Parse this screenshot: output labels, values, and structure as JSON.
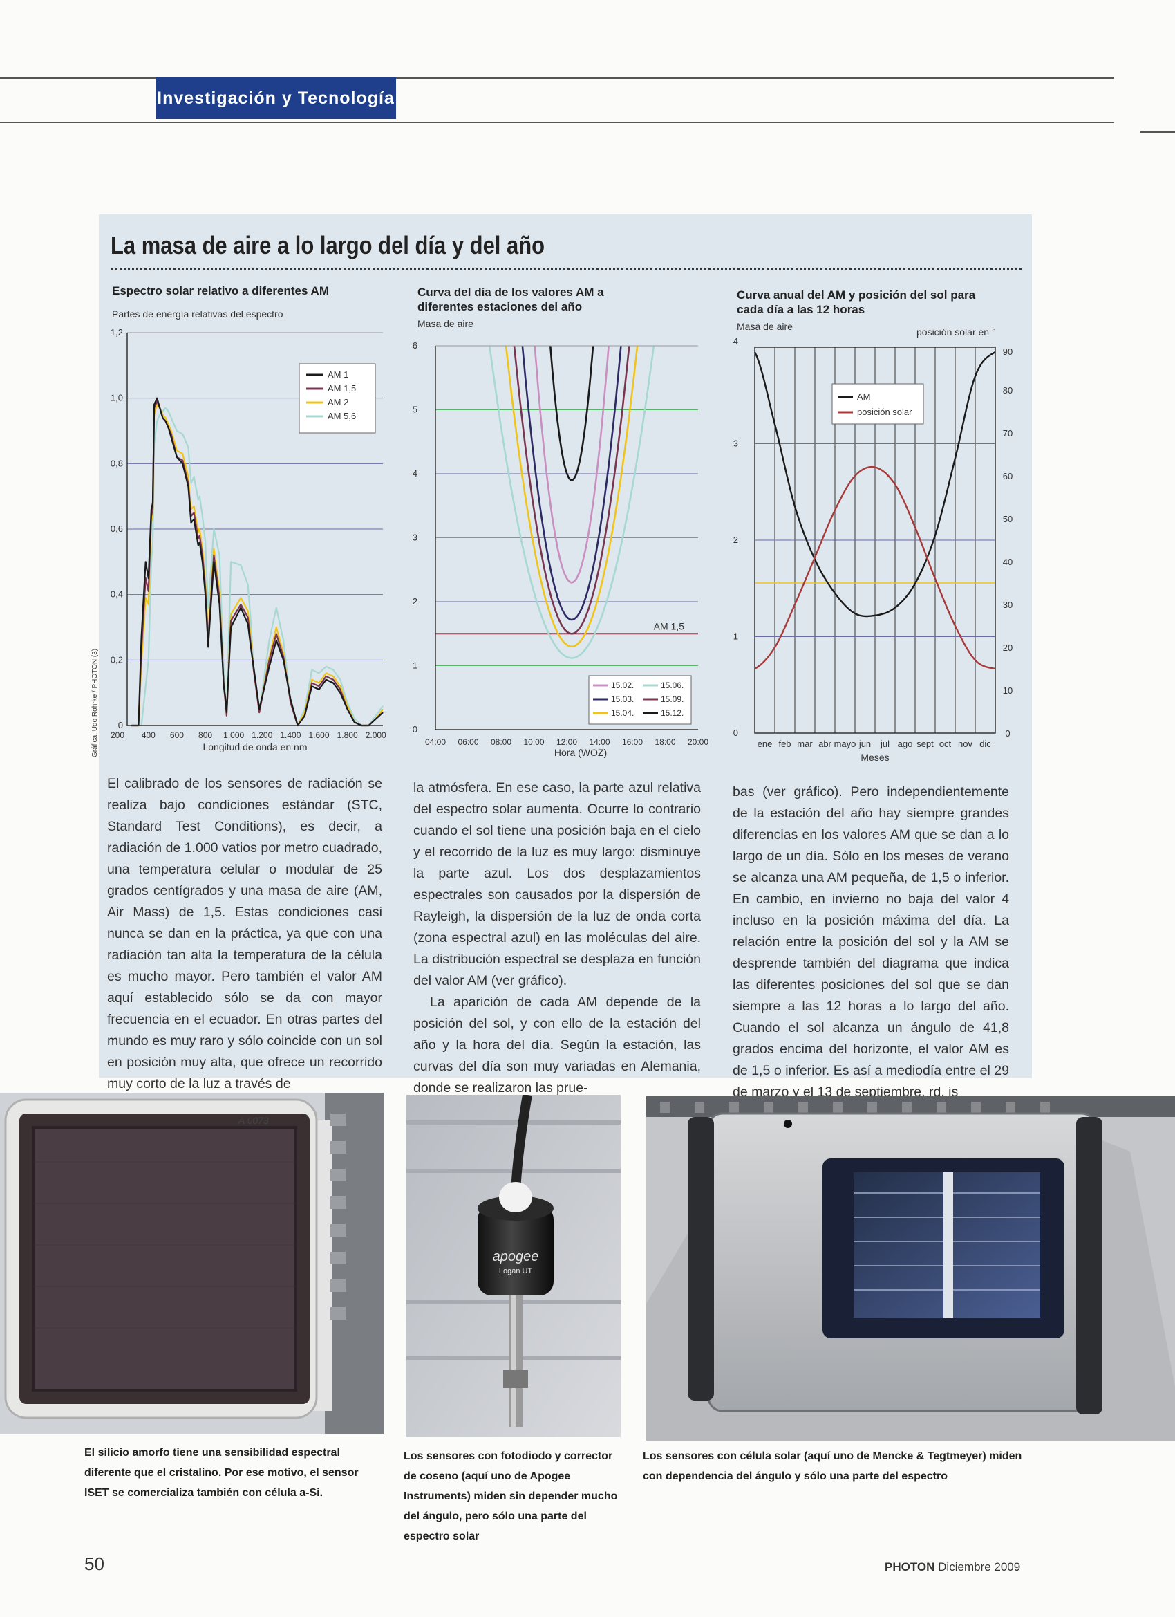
{
  "header": {
    "section": "Investigación y Tecnología"
  },
  "box": {
    "title": "La masa de aire a lo largo del día y del año"
  },
  "chart1": {
    "title": "Espectro solar relativo a diferentes AM",
    "subtitle": "Partes de energía relativas del espectro",
    "credit": "Gráfica: Udo Rohrke / PHOTON (3)"
  },
  "chart2": {
    "title": "Curva del día de los valores AM a diferentes estaciones del año",
    "subtitle": "Masa de aire",
    "annotation": "AM 1,5"
  },
  "chart3": {
    "title": "Curva anual del AM y posición del sol para cada día a las 12 horas",
    "subtitle": "Masa de aire",
    "right_axis_title": "posición solar en °"
  },
  "chart_data": [
    {
      "type": "line",
      "title": "Espectro solar relativo a diferentes AM",
      "ylabel": "Partes de energía relativas del espectro",
      "xlabel": "Longitud de onda en nm",
      "x_ticks": [
        "200",
        "400",
        "600",
        "800",
        "1.000",
        "1.200",
        "1.400",
        "1.600",
        "1.800",
        "2.000"
      ],
      "y_ticks": [
        "0",
        "0,2",
        "0,4",
        "0,6",
        "0,8",
        "1,0",
        "1,2"
      ],
      "xlim": [
        250,
        2050
      ],
      "ylim": [
        0,
        1.2
      ],
      "grid": true,
      "legend": "top-right",
      "x": [
        280,
        330,
        350,
        380,
        400,
        420,
        430,
        440,
        460,
        480,
        500,
        520,
        540,
        560,
        600,
        640,
        680,
        700,
        720,
        750,
        760,
        780,
        800,
        820,
        860,
        900,
        930,
        940,
        950,
        980,
        1050,
        1100,
        1120,
        1140,
        1180,
        1250,
        1300,
        1350,
        1400,
        1450,
        1500,
        1550,
        1600,
        1650,
        1700,
        1750,
        1800,
        1850,
        1900,
        1950,
        2000,
        2050
      ],
      "series": [
        {
          "name": "AM 1",
          "color": "#1a1a1a",
          "values": [
            0.0,
            0.0,
            0.27,
            0.5,
            0.45,
            0.66,
            0.68,
            0.98,
            1.0,
            0.97,
            0.94,
            0.93,
            0.91,
            0.88,
            0.82,
            0.8,
            0.73,
            0.62,
            0.63,
            0.55,
            0.56,
            0.5,
            0.4,
            0.24,
            0.5,
            0.37,
            0.12,
            0.09,
            0.04,
            0.3,
            0.36,
            0.31,
            0.24,
            0.18,
            0.05,
            0.18,
            0.26,
            0.2,
            0.08,
            0.0,
            0.03,
            0.12,
            0.11,
            0.14,
            0.13,
            0.1,
            0.05,
            0.01,
            0.0,
            0.0,
            0.02,
            0.04
          ]
        },
        {
          "name": "AM 1,5",
          "color": "#7a3550",
          "values": [
            0.0,
            0.0,
            0.23,
            0.45,
            0.41,
            0.64,
            0.66,
            0.97,
            0.99,
            0.97,
            0.94,
            0.93,
            0.91,
            0.89,
            0.82,
            0.81,
            0.74,
            0.64,
            0.65,
            0.57,
            0.58,
            0.52,
            0.42,
            0.26,
            0.52,
            0.39,
            0.12,
            0.08,
            0.03,
            0.32,
            0.37,
            0.33,
            0.25,
            0.17,
            0.04,
            0.2,
            0.28,
            0.21,
            0.07,
            0.0,
            0.03,
            0.13,
            0.12,
            0.15,
            0.14,
            0.11,
            0.05,
            0.01,
            0.0,
            0.0,
            0.02,
            0.04
          ]
        },
        {
          "name": "AM 2",
          "color": "#f0c419",
          "values": [
            0.0,
            0.0,
            0.19,
            0.39,
            0.37,
            0.62,
            0.64,
            0.95,
            0.98,
            0.97,
            0.95,
            0.94,
            0.92,
            0.9,
            0.84,
            0.83,
            0.76,
            0.66,
            0.67,
            0.59,
            0.6,
            0.54,
            0.44,
            0.28,
            0.54,
            0.41,
            0.12,
            0.08,
            0.03,
            0.34,
            0.39,
            0.35,
            0.27,
            0.17,
            0.04,
            0.21,
            0.3,
            0.22,
            0.07,
            0.0,
            0.04,
            0.14,
            0.13,
            0.16,
            0.15,
            0.12,
            0.06,
            0.01,
            0.0,
            0.0,
            0.02,
            0.05
          ]
        },
        {
          "name": "AM 5,6",
          "color": "#a7d8d2",
          "values": [
            0.0,
            0.0,
            0.0,
            0.12,
            0.2,
            0.5,
            0.56,
            0.86,
            0.93,
            0.95,
            0.96,
            0.97,
            0.96,
            0.94,
            0.9,
            0.89,
            0.85,
            0.74,
            0.76,
            0.69,
            0.7,
            0.64,
            0.56,
            0.36,
            0.6,
            0.52,
            0.16,
            0.1,
            0.04,
            0.5,
            0.49,
            0.43,
            0.32,
            0.18,
            0.04,
            0.26,
            0.36,
            0.26,
            0.07,
            0.0,
            0.05,
            0.17,
            0.16,
            0.18,
            0.17,
            0.14,
            0.07,
            0.02,
            0.0,
            0.0,
            0.03,
            0.06
          ]
        }
      ]
    },
    {
      "type": "line",
      "title": "Curva del día de los valores AM a diferentes estaciones del año",
      "ylabel": "Masa de aire",
      "xlabel": "Hora (WOZ)",
      "x_ticks": [
        "04:00",
        "06:00",
        "08:00",
        "10:00",
        "12:00",
        "14:00",
        "16:00",
        "18:00",
        "20:00"
      ],
      "y_ticks": [
        "0",
        "1",
        "2",
        "3",
        "4",
        "5",
        "6"
      ],
      "xlim": [
        4,
        20
      ],
      "ylim": [
        0,
        6
      ],
      "grid": true,
      "legend": "bottom-right",
      "reference_line": {
        "label": "AM 1,5",
        "value": 1.5,
        "color": "#8e3a4c"
      },
      "series": [
        {
          "name": "15.02.",
          "color": "#c98fc0",
          "min_am": 2.3,
          "noon": 12.3,
          "half_width_at_6": 2.25
        },
        {
          "name": "15.03.",
          "color": "#2e2a63",
          "min_am": 1.72,
          "noon": 12.3,
          "half_width_at_6": 3.0
        },
        {
          "name": "15.04.",
          "color": "#f0c419",
          "min_am": 1.3,
          "noon": 12.3,
          "half_width_at_6": 4.0
        },
        {
          "name": "15.06.",
          "color": "#a7d8d2",
          "min_am": 1.12,
          "noon": 12.3,
          "half_width_at_6": 5.0
        },
        {
          "name": "15.09.",
          "color": "#7a3550",
          "min_am": 1.5,
          "noon": 12.3,
          "half_width_at_6": 3.5
        },
        {
          "name": "15.12.",
          "color": "#1a1a1a",
          "min_am": 3.9,
          "noon": 12.3,
          "half_width_at_6": 1.3
        }
      ]
    },
    {
      "type": "line",
      "title": "Curva anual del AM y posición del sol para cada día a las 12 horas",
      "ylabel": "Masa de aire",
      "xlabel": "Meses",
      "y2label": "posición solar en °",
      "x_ticks": [
        "ene",
        "feb",
        "mar",
        "abr",
        "mayo",
        "jun",
        "jul",
        "ago",
        "sept",
        "oct",
        "nov",
        "dic"
      ],
      "y_ticks": [
        "0",
        "1",
        "2",
        "3",
        "4"
      ],
      "y2_ticks": [
        "0",
        "10",
        "20",
        "30",
        "40",
        "50",
        "60",
        "70",
        "80",
        "90"
      ],
      "ylim": [
        0,
        4
      ],
      "y2lim": [
        0,
        90
      ],
      "grid": true,
      "legend": "top-center",
      "x_months": [
        0,
        1,
        2,
        3,
        4,
        5,
        6,
        7,
        8,
        9,
        10,
        11,
        12
      ],
      "reference_line_y2": 35,
      "series": [
        {
          "name": "AM",
          "axis": "left",
          "color": "#1a1a1a",
          "values": [
            3.95,
            3.2,
            2.35,
            1.8,
            1.45,
            1.24,
            1.22,
            1.3,
            1.55,
            2.05,
            2.85,
            3.7,
            3.95
          ]
        },
        {
          "name": "posición solar",
          "axis": "right",
          "color": "#a63a3a",
          "values": [
            15,
            20,
            30,
            41,
            52,
            60,
            62,
            58,
            48,
            36,
            25,
            17,
            15
          ]
        }
      ]
    }
  ],
  "columns": {
    "col1": [
      "El calibrado de los sensores de radiación se realiza bajo condiciones estándar (STC, Standard Test Conditions), es decir, a radiación de 1.000 vatios por metro cuadrado, una temperatura celular o modular de 25 grados centígrados y una masa de aire (AM, Air Mass) de 1,5. Estas condiciones casi nunca se dan en la práctica, ya que con una radiación tan alta la temperatura de la célula es mucho mayor. Pero también el valor AM aquí establecido sólo se da con mayor frecuencia en el ecuador. En otras partes del mundo es muy raro y sólo coincide con un sol en posición muy alta, que ofrece un recorrido muy corto de la luz a través de"
    ],
    "col2": [
      "la atmósfera. En ese caso, la parte azul relativa del espectro solar aumenta. Ocurre lo contrario cuando el sol tiene una posición baja en el cielo y el recorrido de la luz es muy largo: disminuye la parte azul. Los dos desplazamientos espectrales son causados por la dispersión de Rayleigh, la dispersión de la luz de onda corta (zona espectral azul) en las moléculas del aire. La distribución espectral se desplaza en función del valor AM (ver gráfico).",
      "La aparición de cada AM depende de la posición del sol, y con ello de la estación del año y la hora del día. Según la estación, las curvas del día son muy variadas en Alemania, donde se realizaron las prue-"
    ],
    "col3": [
      "bas (ver gráfico). Pero independientemente de la estación del año hay siempre grandes diferencias en los valores AM que se dan a lo largo de un día. Sólo en los meses de verano se alcanza una AM pequeña, de 1,5 o inferior. En cambio, en invierno no baja del valor 4 incluso en la posición máxima del día. La relación entre la posición del sol y la AM se desprende también del diagrama que indica las diferentes posiciones del sol que se dan siempre a las 12 horas a lo largo del año. Cuando el sol alcanza un ángulo de 41,8 grados encima del horizonte, el valor AM es de 1,5 o inferior. Es así a mediodía entre el 29 de marzo y el 13 de septiembre. rd, js"
    ]
  },
  "photos": {
    "p1": {
      "label": "A 0073"
    },
    "p2": {
      "brand": "apogee",
      "model": "Logan UT"
    }
  },
  "captions": {
    "c1": "El silicio amorfo tiene una sensibilidad espectral diferente que el cristalino. Por ese motivo, el sensor ISET se comercializa también con célula a-Si.",
    "c2": "Los sensores con fotodiodo y corrector de coseno (aquí uno de Apogee Instruments) miden sin depender mucho del ángulo, pero sólo una parte del espectro solar",
    "c3": "Los sensores con célula solar (aquí uno de Mencke & Tegtmeyer) miden con dependencia del ángulo y sólo una parte del espectro"
  },
  "footer": {
    "page": "50",
    "brand": "PHOTON",
    "issue": "Diciembre 2009"
  }
}
